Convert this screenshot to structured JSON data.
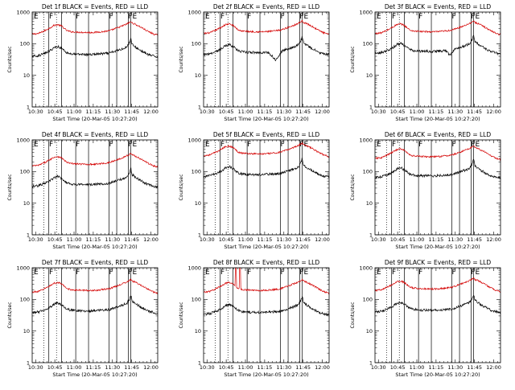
{
  "figure": {
    "panels": [
      {
        "title": "Det 1f BLACK = Events, RED = LLD",
        "variant": 0
      },
      {
        "title": "Det 2f BLACK = Events, RED = LLD",
        "variant": 1
      },
      {
        "title": "Det 3f BLACK = Events, RED = LLD",
        "variant": 2
      },
      {
        "title": "Det 4f BLACK = Events, RED = LLD",
        "variant": 3
      },
      {
        "title": "Det 5f BLACK = Events, RED = LLD",
        "variant": 4
      },
      {
        "title": "Det 6f BLACK = Events, RED = LLD",
        "variant": 5
      },
      {
        "title": "Det 7f BLACK = Events, RED = LLD",
        "variant": 6
      },
      {
        "title": "Det 8f BLACK = Events, RED = LLD",
        "variant": 7
      },
      {
        "title": "Det 9f BLACK = Events, RED = LLD",
        "variant": 8
      }
    ],
    "xlabel": "Start Time (20-Mar-05 10:27:20)",
    "ylabel": "Counts/sec",
    "xticks": [
      "10:30",
      "10:45",
      "11:00",
      "11:15",
      "11:30",
      "11:45",
      "12:00"
    ],
    "yticks": [
      "1",
      "10",
      "100",
      "1000"
    ],
    "flag_labels": [
      "E",
      "F",
      "F",
      "F",
      "FE"
    ]
  },
  "chart_data": {
    "type": "line",
    "x_unit": "minutes after 10:27:20",
    "y_scale": "log",
    "ylim": [
      1,
      1000
    ],
    "xlim": [
      0,
      98
    ],
    "events_base": [
      [
        0,
        40
      ],
      [
        5,
        42
      ],
      [
        10,
        50
      ],
      [
        14,
        60
      ],
      [
        17,
        75
      ],
      [
        20,
        82
      ],
      [
        23,
        72
      ],
      [
        27,
        52
      ],
      [
        30,
        48
      ],
      [
        35,
        46
      ],
      [
        40,
        46
      ],
      [
        45,
        45
      ],
      [
        50,
        47
      ],
      [
        55,
        48
      ],
      [
        60,
        50
      ],
      [
        65,
        58
      ],
      [
        70,
        68
      ],
      [
        74,
        80
      ],
      [
        76,
        110
      ],
      [
        77,
        150
      ],
      [
        78,
        95
      ],
      [
        80,
        80
      ],
      [
        85,
        60
      ],
      [
        90,
        46
      ],
      [
        95,
        40
      ],
      [
        98,
        38
      ]
    ],
    "lld_base": [
      [
        0,
        200
      ],
      [
        5,
        210
      ],
      [
        10,
        260
      ],
      [
        14,
        320
      ],
      [
        17,
        380
      ],
      [
        20,
        400
      ],
      [
        23,
        360
      ],
      [
        27,
        260
      ],
      [
        30,
        240
      ],
      [
        35,
        232
      ],
      [
        40,
        228
      ],
      [
        45,
        225
      ],
      [
        50,
        230
      ],
      [
        55,
        240
      ],
      [
        60,
        255
      ],
      [
        65,
        300
      ],
      [
        70,
        360
      ],
      [
        74,
        420
      ],
      [
        76,
        470
      ],
      [
        77,
        500
      ],
      [
        78,
        450
      ],
      [
        80,
        420
      ],
      [
        85,
        330
      ],
      [
        90,
        250
      ],
      [
        95,
        200
      ],
      [
        98,
        185
      ]
    ],
    "panel_scale": [
      {
        "events": 1.0,
        "lld": 1.0
      },
      {
        "events": 1.15,
        "lld": 1.05
      },
      {
        "events": 1.25,
        "lld": 1.05
      },
      {
        "events": 0.85,
        "lld": 0.75
      },
      {
        "events": 1.75,
        "lld": 1.6
      },
      {
        "events": 1.6,
        "lld": 1.3
      },
      {
        "events": 0.95,
        "lld": 0.85
      },
      {
        "events": 0.85,
        "lld": 0.85
      },
      {
        "events": 1.0,
        "lld": 0.95
      }
    ],
    "marker_dotted_x": [
      9,
      19
    ],
    "marker_solid_x": [
      13,
      23,
      34,
      44,
      60,
      66,
      75,
      77
    ]
  }
}
